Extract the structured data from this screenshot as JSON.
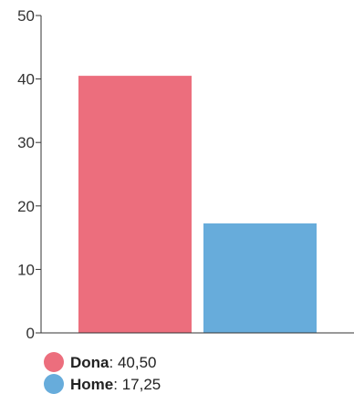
{
  "chart_data": {
    "type": "bar",
    "categories": [
      "Dona",
      "Home"
    ],
    "values": [
      40.5,
      17.25
    ],
    "colors": [
      "#ec6e7d",
      "#67acdb"
    ],
    "ylim": [
      0,
      50
    ],
    "yticks": [
      "0",
      "10",
      "20",
      "30",
      "40",
      "50"
    ],
    "grid": false,
    "legend_position": "bottom-left",
    "legend": [
      {
        "name": "Dona",
        "value_label": "40,50",
        "color": "#ec6e7d"
      },
      {
        "name": "Home",
        "value_label": "17,25",
        "color": "#67acdb"
      }
    ]
  }
}
